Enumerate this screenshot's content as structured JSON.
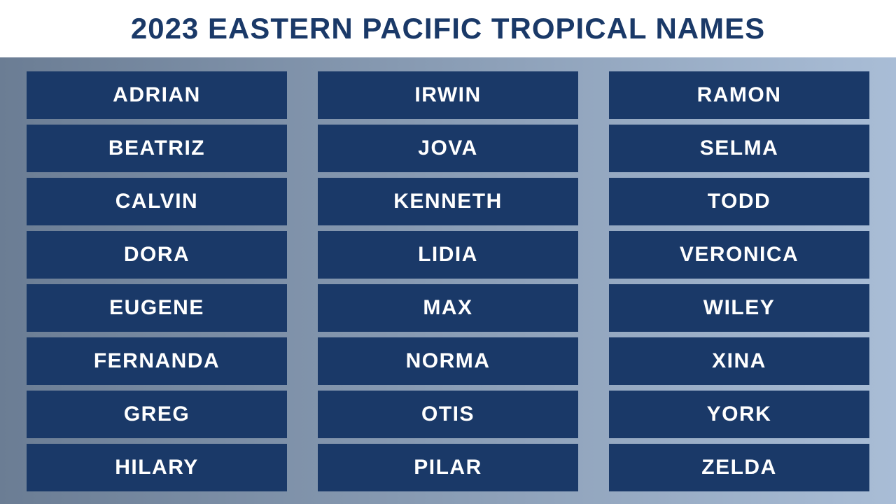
{
  "title": "2023 EASTERN PACIFIC TROPICAL NAMES",
  "colors": {
    "title_color": "#1a3968",
    "header_bg": "#ffffff",
    "gradient_start": "#6b7d94",
    "gradient_end": "#a9bdd6",
    "cell_bg": "#1a3968",
    "cell_text": "#ffffff"
  },
  "layout": {
    "columns": 3,
    "rows_per_column": 8,
    "cell_font_size": 30,
    "title_font_size": 42
  },
  "names": {
    "col1": [
      "ADRIAN",
      "BEATRIZ",
      "CALVIN",
      "DORA",
      "EUGENE",
      "FERNANDA",
      "GREG",
      "HILARY"
    ],
    "col2": [
      "IRWIN",
      "JOVA",
      "KENNETH",
      "LIDIA",
      "MAX",
      "NORMA",
      "OTIS",
      "PILAR"
    ],
    "col3": [
      "RAMON",
      "SELMA",
      "TODD",
      "VERONICA",
      "WILEY",
      "XINA",
      "YORK",
      "ZELDA"
    ]
  }
}
